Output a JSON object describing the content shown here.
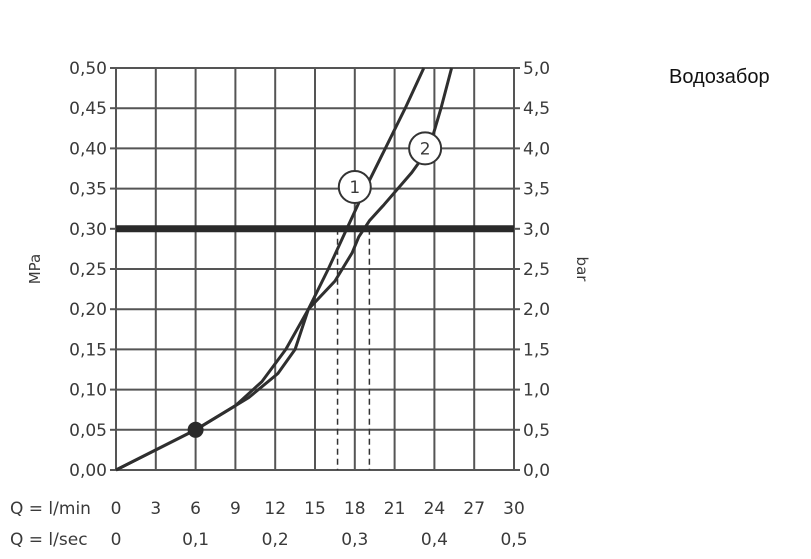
{
  "side_label": "Водозабор",
  "chart_data": {
    "type": "line",
    "title": "",
    "y_left": {
      "label": "MPa",
      "range": [
        0,
        0.5
      ],
      "ticks": [
        "0,00",
        "0,05",
        "0,10",
        "0,15",
        "0,20",
        "0,25",
        "0,30",
        "0,35",
        "0,40",
        "0,45",
        "0,50"
      ]
    },
    "y_right": {
      "label": "bar",
      "range": [
        0,
        5
      ],
      "ticks": [
        "0,0",
        "0,5",
        "1,0",
        "1,5",
        "2,0",
        "2,5",
        "3,0",
        "3,5",
        "4,0",
        "4,5",
        "5,0"
      ]
    },
    "x_lmin": {
      "label": "Q = l/min",
      "range": [
        0,
        30
      ],
      "ticks": [
        "0",
        "3",
        "6",
        "9",
        "12",
        "15",
        "18",
        "21",
        "24",
        "27",
        "30"
      ]
    },
    "x_lsec": {
      "label": "Q = l/sec",
      "ticks": [
        {
          "value": 0,
          "label": "0"
        },
        {
          "value": 0.1,
          "label": "0,1"
        },
        {
          "value": 0.2,
          "label": "0,2"
        },
        {
          "value": 0.3,
          "label": "0,3"
        },
        {
          "value": 0.4,
          "label": "0,4"
        },
        {
          "value": 0.5,
          "label": "0,5"
        }
      ]
    },
    "grid": true,
    "reference_line": {
      "y": 0.3
    },
    "marker_point": {
      "x": 6,
      "y": 0.05
    },
    "series": [
      {
        "label": "1",
        "x": [
          0,
          6,
          9,
          11,
          12.8,
          14.5,
          16,
          17.4,
          18.8,
          20.3,
          21.8,
          23.2
        ],
        "y": [
          0,
          0.05,
          0.08,
          0.11,
          0.15,
          0.2,
          0.25,
          0.3,
          0.35,
          0.4,
          0.45,
          0.5
        ],
        "label_point": {
          "x": 18,
          "y": 0.352
        }
      },
      {
        "label": "2",
        "x": [
          0,
          6,
          10,
          12.2,
          13.5,
          14.5,
          16.5,
          17.8,
          18.3,
          19.1,
          20.2,
          22.3,
          23.6,
          24.5,
          25.3
        ],
        "y": [
          0,
          0.05,
          0.09,
          0.12,
          0.15,
          0.2,
          0.235,
          0.27,
          0.29,
          0.31,
          0.33,
          0.37,
          0.4,
          0.45,
          0.5
        ],
        "label_point": {
          "x": 23.3,
          "y": 0.4
        }
      }
    ],
    "drop_lines": [
      {
        "x": 16.7,
        "y": 0.3
      },
      {
        "x": 19.1,
        "y": 0.3
      }
    ]
  }
}
